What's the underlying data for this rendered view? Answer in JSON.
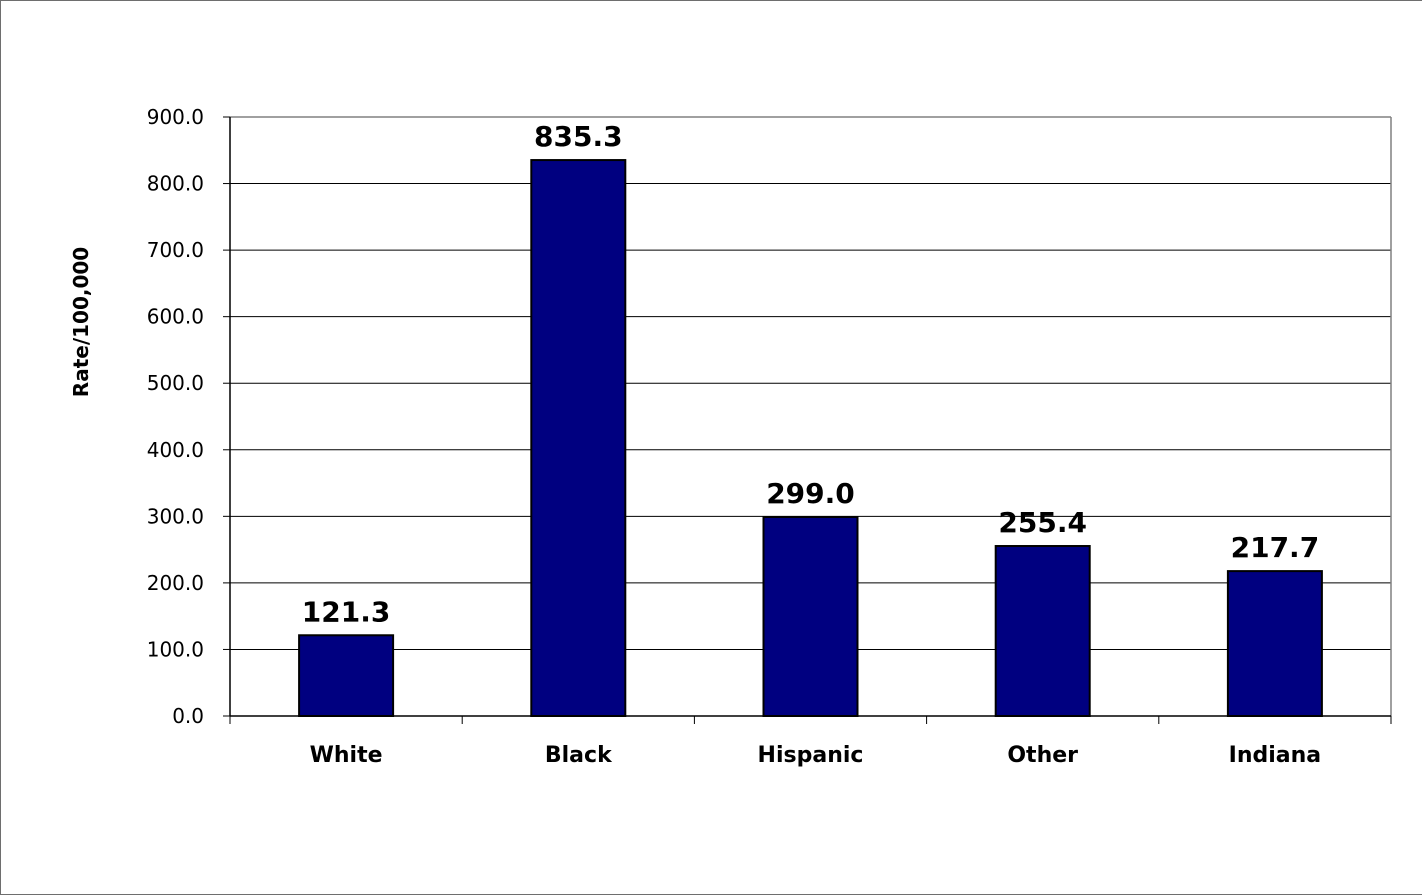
{
  "chart_data": {
    "type": "bar",
    "title": "",
    "xlabel": "",
    "ylabel": "Rate/100,000",
    "categories": [
      "White",
      "Black",
      "Hispanic",
      "Other",
      "Indiana"
    ],
    "values": [
      121.3,
      835.3,
      299.0,
      255.4,
      217.7
    ],
    "data_labels": [
      "121.3",
      "835.3",
      "299.0",
      "255.4",
      "217.7"
    ],
    "ylim": [
      0,
      900
    ],
    "yticks": [
      "0.0",
      "100.0",
      "200.0",
      "300.0",
      "400.0",
      "500.0",
      "600.0",
      "700.0",
      "800.0",
      "900.0"
    ],
    "grid": true,
    "legend": "none",
    "bar_color": "#000080"
  }
}
